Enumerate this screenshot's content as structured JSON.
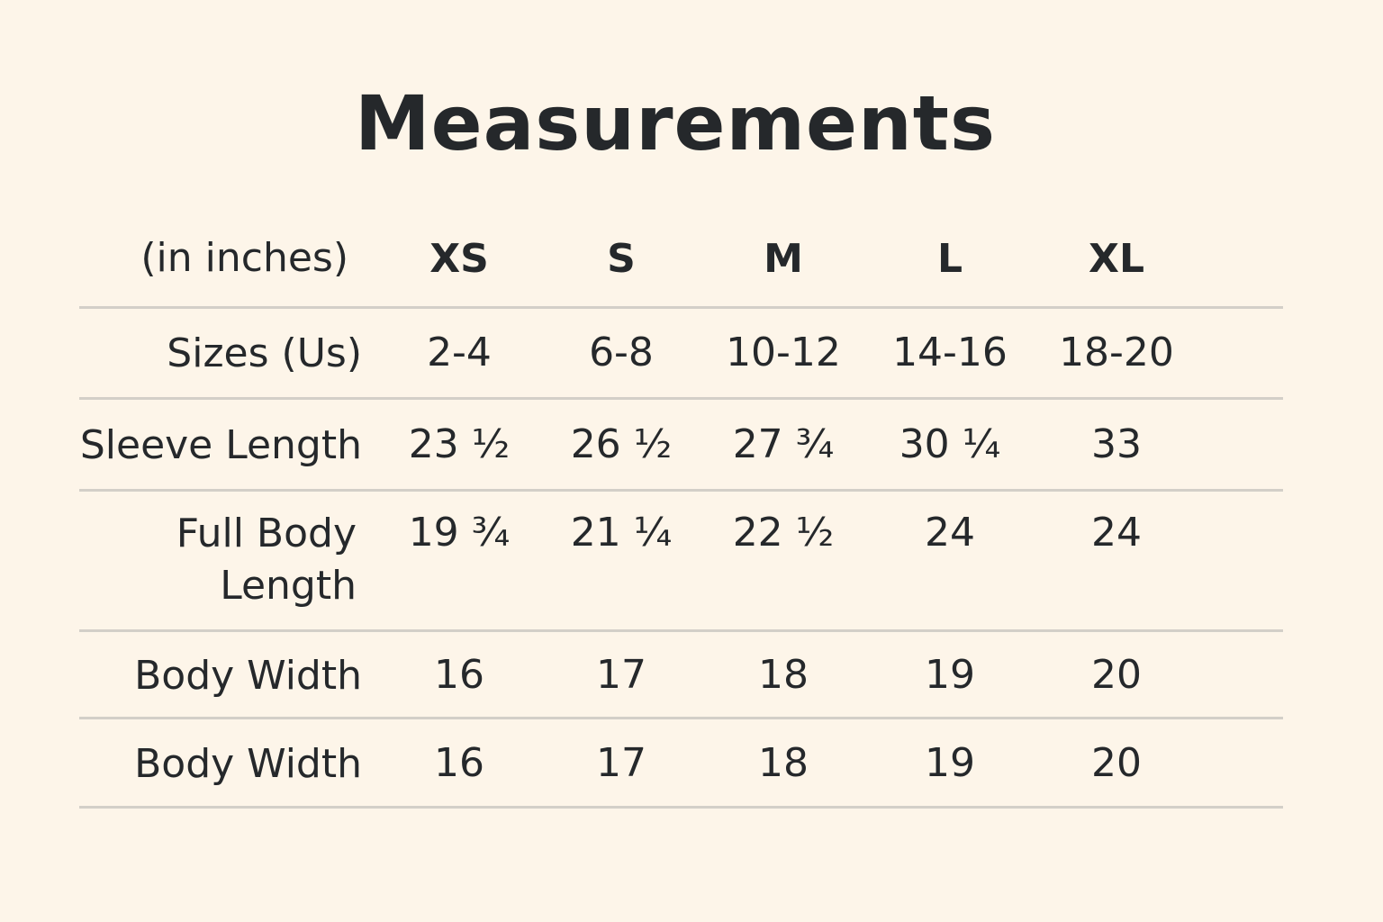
{
  "title": "Measurements",
  "unit_label": "(in inches)",
  "columns": [
    "XS",
    "S",
    "M",
    "L",
    "XL"
  ],
  "rows": [
    {
      "label": "Sizes (Us)",
      "values": [
        "2-4",
        "6-8",
        "10-12",
        "14-16",
        "18-20"
      ]
    },
    {
      "label": "Sleeve Length",
      "values": [
        "23 ½",
        "26 ½",
        "27 ¾",
        "30 ¼",
        "33"
      ]
    },
    {
      "label": "Full Body Length",
      "values": [
        "19 ¾",
        "21 ¼",
        "22 ½",
        "24",
        "24"
      ]
    },
    {
      "label": "Body Width",
      "values": [
        "16",
        "17",
        "18",
        "19",
        "20"
      ]
    },
    {
      "label": "Body Width",
      "values": [
        "16",
        "17",
        "18",
        "19",
        "20"
      ]
    }
  ],
  "colors": {
    "background": "#fdf5e9",
    "text": "#25282b",
    "rule": "#d3cfc8"
  }
}
